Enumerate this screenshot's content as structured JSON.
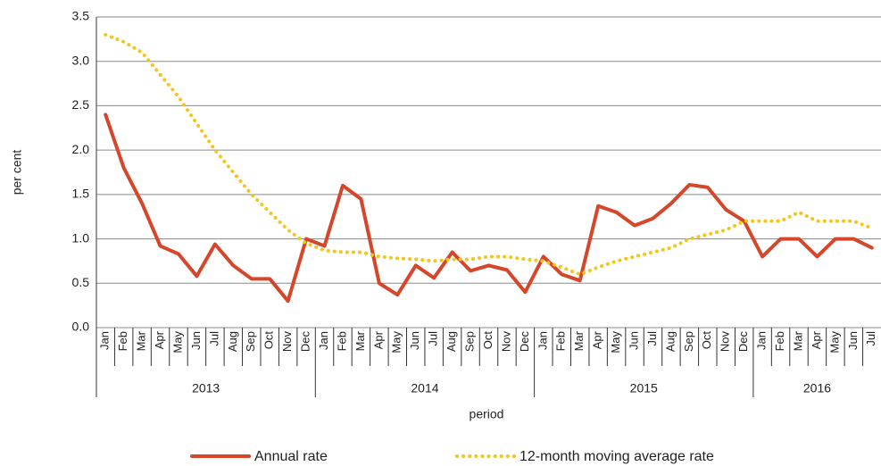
{
  "chart_data": {
    "type": "line",
    "x_label": "period",
    "y_label": "per cent",
    "groups": [
      {
        "label": "2013",
        "categories": [
          "Jan",
          "Feb",
          "Mar",
          "Apr",
          "May",
          "Jun",
          "Jul",
          "Aug",
          "Sep",
          "Oct",
          "Nov",
          "Dec"
        ]
      },
      {
        "label": "2014",
        "categories": [
          "Jan",
          "Feb",
          "Mar",
          "Apr",
          "May",
          "Jun",
          "Jul",
          "Aug",
          "Sep",
          "Oct",
          "Nov",
          "Dec"
        ]
      },
      {
        "label": "2015",
        "categories": [
          "Jan",
          "Feb",
          "Mar",
          "Apr",
          "May",
          "Jun",
          "Jul",
          "Aug",
          "Sep",
          "Oct",
          "Nov",
          "Dec"
        ]
      },
      {
        "label": "2016",
        "categories": [
          "Jan",
          "Feb",
          "Mar",
          "Apr",
          "May",
          "Jun",
          "Jul"
        ]
      }
    ],
    "series": [
      {
        "name": "Annual rate",
        "color": "#d5462a",
        "style": "solid",
        "values": [
          2.4,
          1.8,
          1.4,
          0.92,
          0.83,
          0.58,
          0.94,
          0.7,
          0.55,
          0.55,
          0.3,
          1.0,
          0.92,
          1.6,
          1.45,
          0.5,
          0.37,
          0.7,
          0.56,
          0.85,
          0.64,
          0.7,
          0.65,
          0.4,
          0.8,
          0.6,
          0.53,
          1.37,
          1.3,
          1.15,
          1.23,
          1.4,
          1.61,
          1.58,
          1.33,
          1.2,
          0.8,
          1.0,
          1.0,
          0.8,
          1.0,
          1.0,
          0.9
        ]
      },
      {
        "name": "12-month moving average rate",
        "color": "#f5c518",
        "style": "dotted",
        "values": [
          3.3,
          3.22,
          3.1,
          2.85,
          2.6,
          2.3,
          2.0,
          1.75,
          1.5,
          1.3,
          1.1,
          0.95,
          0.87,
          0.85,
          0.85,
          0.8,
          0.78,
          0.77,
          0.75,
          0.77,
          0.77,
          0.8,
          0.8,
          0.77,
          0.75,
          0.68,
          0.6,
          0.68,
          0.75,
          0.8,
          0.85,
          0.9,
          1.0,
          1.05,
          1.1,
          1.2,
          1.2,
          1.2,
          1.3,
          1.2,
          1.2,
          1.2,
          1.12
        ]
      }
    ],
    "ylim": [
      0,
      3.5
    ],
    "yticks": [
      {
        "value": 0,
        "label": "0.0"
      },
      0.5,
      {
        "value": 1,
        "label": "1.0"
      },
      1.5,
      {
        "value": 2,
        "label": "2.0"
      },
      2.5,
      {
        "value": 3,
        "label": "3.0"
      },
      3.5
    ],
    "grid": true
  }
}
